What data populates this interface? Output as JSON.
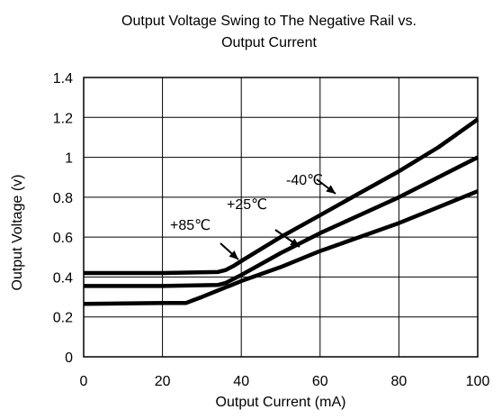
{
  "chart_data": {
    "type": "line",
    "title_line1": "Output Voltage Swing to The Negative Rail vs.",
    "title_line2": "Output Current",
    "xlabel": "Output Current (mA)",
    "ylabel": "Output Voltage (v)",
    "xlim": [
      0,
      100
    ],
    "ylim": [
      0,
      1.4
    ],
    "xticks": [
      0,
      20,
      40,
      60,
      80,
      100
    ],
    "yticks": [
      0,
      0.2,
      0.4,
      0.6,
      0.8,
      1,
      1.2,
      1.4
    ],
    "ytick_labels": [
      "0",
      "0.2",
      "0.4",
      "0.6",
      "0.8",
      "1",
      "1.2",
      "1.4"
    ],
    "xtick_labels": [
      "0",
      "20",
      "40",
      "60",
      "80",
      "100"
    ],
    "grid": true,
    "series": [
      {
        "name": "-40℃",
        "x": [
          0,
          20,
          34,
          36,
          38,
          40,
          50,
          60,
          70,
          80,
          90,
          100
        ],
        "y": [
          0.42,
          0.42,
          0.425,
          0.435,
          0.455,
          0.48,
          0.6,
          0.71,
          0.82,
          0.93,
          1.05,
          1.19
        ]
      },
      {
        "name": "+25℃",
        "x": [
          0,
          20,
          34,
          36,
          38,
          40,
          50,
          60,
          70,
          80,
          90,
          100
        ],
        "y": [
          0.355,
          0.355,
          0.36,
          0.37,
          0.39,
          0.41,
          0.52,
          0.62,
          0.71,
          0.8,
          0.9,
          1.0
        ]
      },
      {
        "name": "+85℃",
        "x": [
          0,
          10,
          20,
          26,
          28,
          30,
          40,
          50,
          60,
          70,
          80,
          90,
          100
        ],
        "y": [
          0.265,
          0.268,
          0.27,
          0.27,
          0.285,
          0.3,
          0.38,
          0.45,
          0.53,
          0.6,
          0.67,
          0.75,
          0.83
        ]
      }
    ],
    "annotations": [
      {
        "text": "-40℃",
        "series": "-40℃"
      },
      {
        "text": "+25℃",
        "series": "+25℃"
      },
      {
        "text": "+85℃",
        "series": "+85℃"
      }
    ]
  }
}
